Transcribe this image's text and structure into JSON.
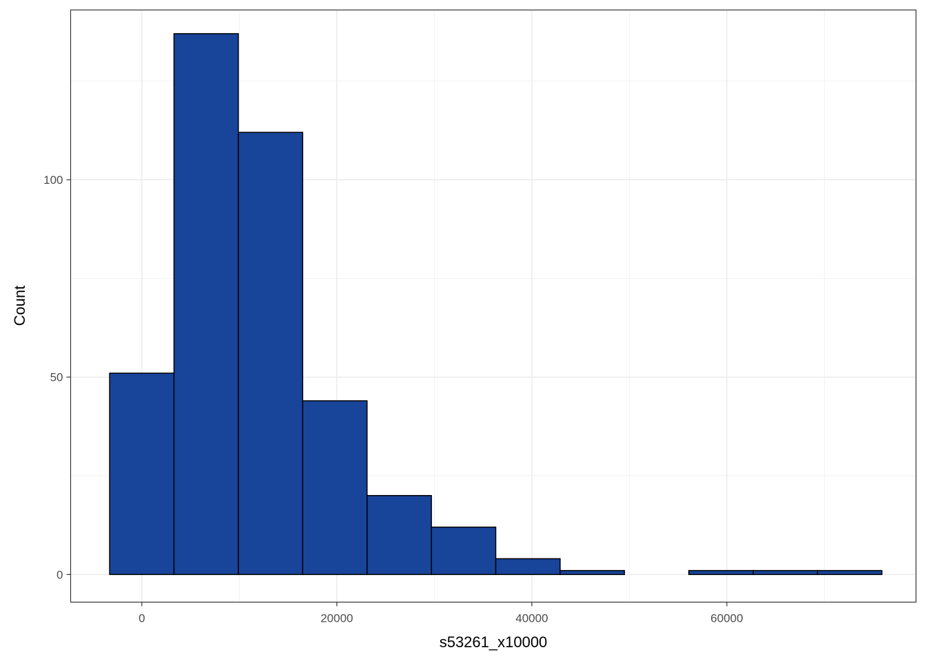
{
  "chart_data": {
    "type": "bar",
    "title": "",
    "xlabel": "s53261_x10000",
    "ylabel": "Count",
    "xlim": [
      -7300,
      79400
    ],
    "ylim": [
      -7,
      143
    ],
    "grid": true,
    "bin_width": 6600,
    "bins": [
      {
        "x0": -3300,
        "x1": 3300,
        "count": 51
      },
      {
        "x0": 3300,
        "x1": 9900,
        "count": 137
      },
      {
        "x0": 9900,
        "x1": 16500,
        "count": 112
      },
      {
        "x0": 16500,
        "x1": 23100,
        "count": 44
      },
      {
        "x0": 23100,
        "x1": 29700,
        "count": 20
      },
      {
        "x0": 29700,
        "x1": 36300,
        "count": 12
      },
      {
        "x0": 36300,
        "x1": 42900,
        "count": 4
      },
      {
        "x0": 42900,
        "x1": 49500,
        "count": 1
      },
      {
        "x0": 49500,
        "x1": 56100,
        "count": 0
      },
      {
        "x0": 56100,
        "x1": 62700,
        "count": 1
      },
      {
        "x0": 62700,
        "x1": 69300,
        "count": 1
      },
      {
        "x0": 69300,
        "x1": 75900,
        "count": 1
      }
    ],
    "x_ticks": [
      {
        "value": 0,
        "label": "0"
      },
      {
        "value": 20000,
        "label": "20000"
      },
      {
        "value": 40000,
        "label": "40000"
      },
      {
        "value": 60000,
        "label": "60000"
      }
    ],
    "y_ticks": [
      {
        "value": 0,
        "label": "0"
      },
      {
        "value": 50,
        "label": "50"
      },
      {
        "value": 100,
        "label": "100"
      }
    ],
    "bar_fill": "#18449A",
    "bar_stroke": "#000000"
  }
}
